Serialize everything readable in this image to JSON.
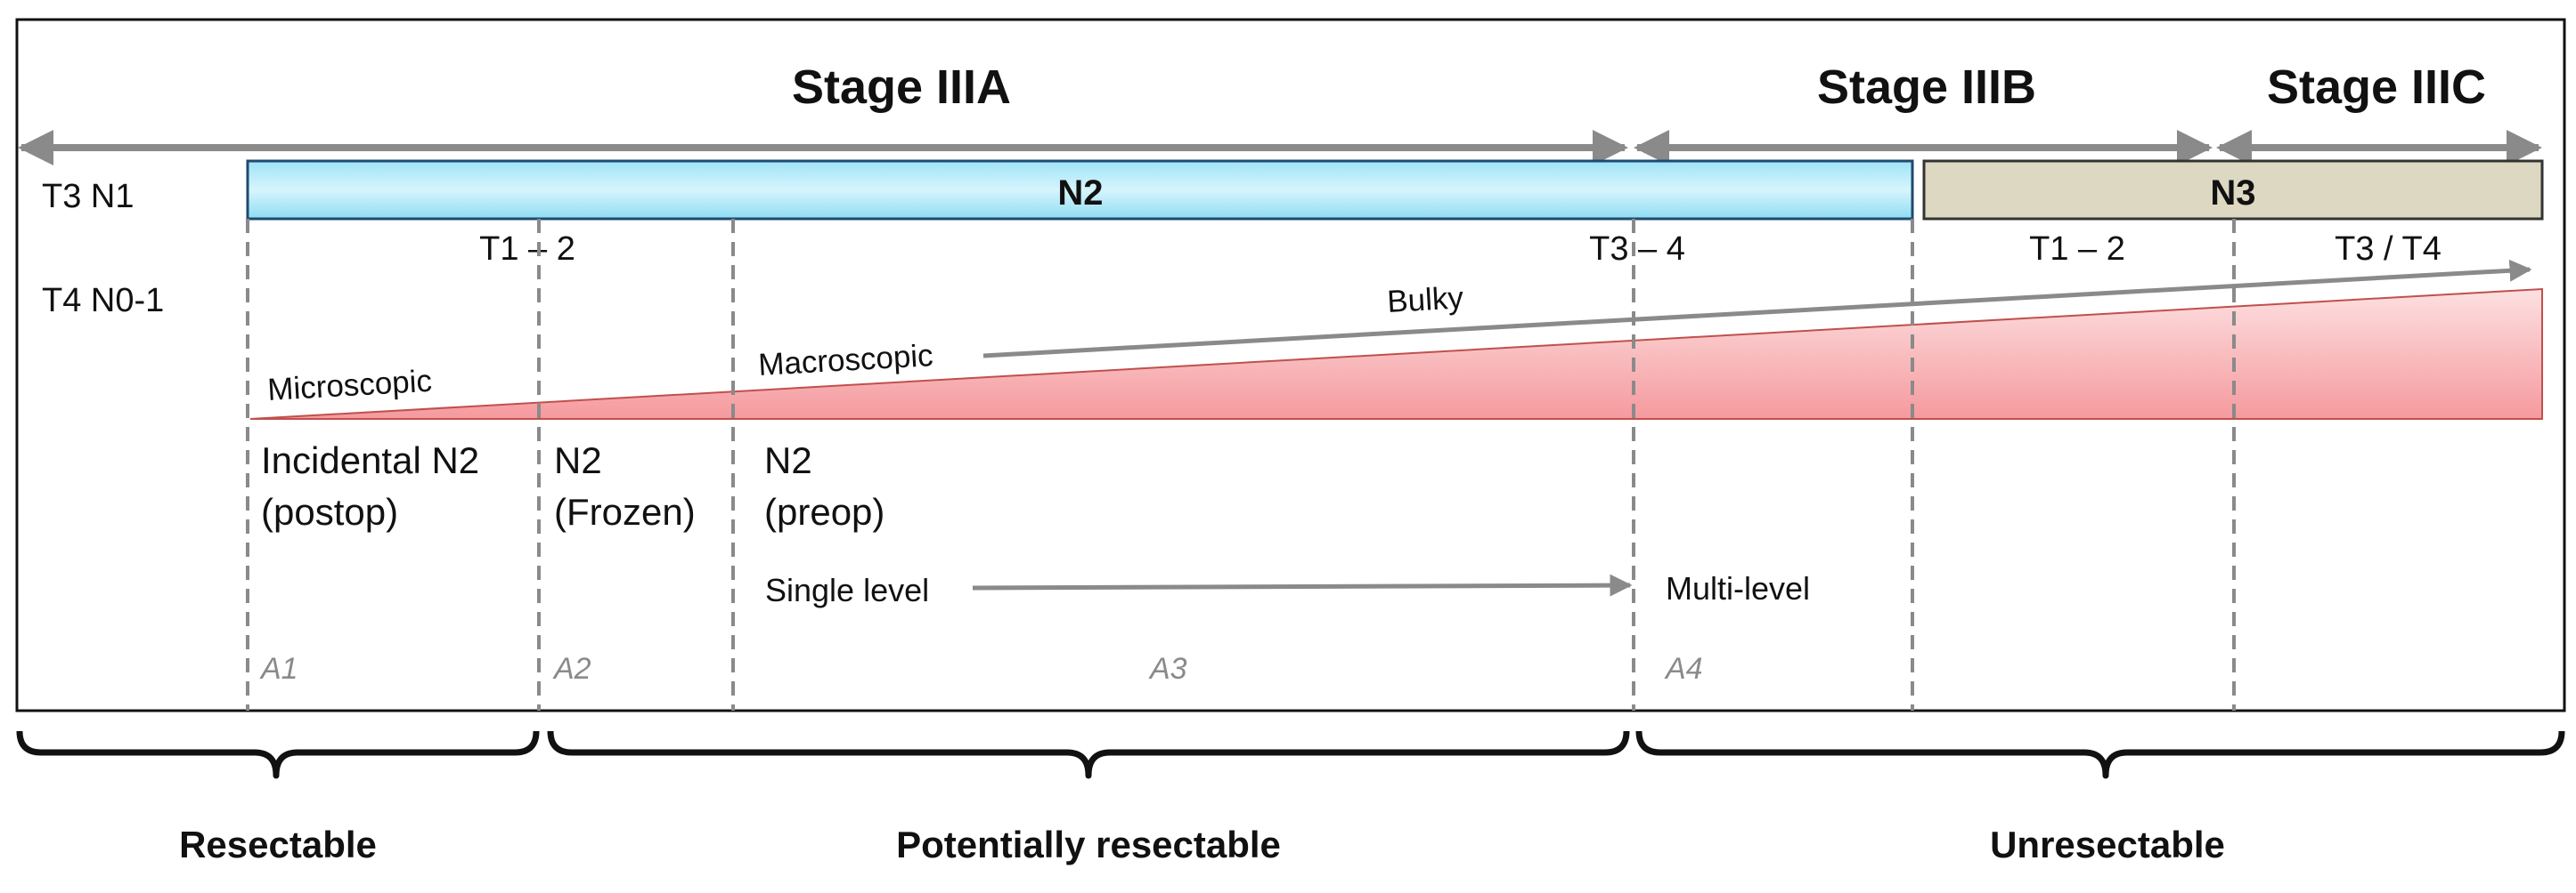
{
  "stages": {
    "iiia": "Stage IIIA",
    "iiib": "Stage IIIB",
    "iiic": "Stage IIIC"
  },
  "left_labels": {
    "t3n1": "T3 N1",
    "t4n01": "T4 N0-1"
  },
  "bars": {
    "n2": "N2",
    "n3": "N3",
    "n2_color": "#b3e9f8",
    "n3_color": "#ddd8c2"
  },
  "t_labels": {
    "t12_left": "T1 – 2",
    "t34": "T3 – 4",
    "t12_right": "T1 – 2",
    "t3t4": "T3 / T4"
  },
  "burden": {
    "microscopic": "Microscopic",
    "macroscopic": "Macroscopic",
    "bulky": "Bulky",
    "wedge_color": "#f7a9ac"
  },
  "categories": {
    "incidental_line1": "Incidental N2",
    "incidental_line2": "(postop)",
    "frozen_line1": "N2",
    "frozen_line2": "(Frozen)",
    "preop_line1": "N2",
    "preop_line2": "(preop)"
  },
  "levels": {
    "single": "Single level",
    "multi": "Multi-level"
  },
  "subgroups": {
    "a1": "A1",
    "a2": "A2",
    "a3": "A3",
    "a4": "A4"
  },
  "resectability": {
    "resectable": "Resectable",
    "potentially": "Potentially resectable",
    "unresectable": "Unresectable"
  }
}
